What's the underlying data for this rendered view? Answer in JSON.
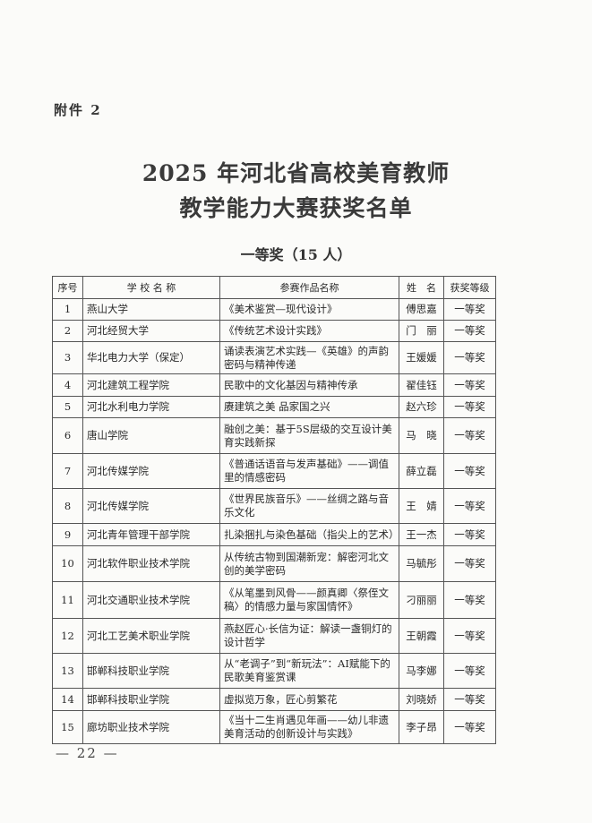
{
  "attachment_label": "附件 2",
  "title_line1": "2025 年河北省高校美育教师",
  "title_line2": "教学能力大赛获奖名单",
  "section_heading": "一等奖（15 人）",
  "table": {
    "headers": [
      "序号",
      "学 校 名 称",
      "参赛作品名称",
      "姓　名",
      "获奖等级"
    ],
    "rows": [
      [
        "1",
        "燕山大学",
        "《美术鉴赏—现代设计》",
        "傅思嘉",
        "一等奖"
      ],
      [
        "2",
        "河北经贸大学",
        "《传统艺术设计实践》",
        "门　丽",
        "一等奖"
      ],
      [
        "3",
        "华北电力大学（保定）",
        "诵读表演艺术实践—《英雄》的声韵密码与精神传递",
        "王媛媛",
        "一等奖"
      ],
      [
        "4",
        "河北建筑工程学院",
        "民歌中的文化基因与精神传承",
        "翟佳钰",
        "一等奖"
      ],
      [
        "5",
        "河北水利电力学院",
        "赓建筑之美 品家国之兴",
        "赵六珍",
        "一等奖"
      ],
      [
        "6",
        "唐山学院",
        "融创之美：基于5S层级的交互设计美育实践新探",
        "马　晓",
        "一等奖"
      ],
      [
        "7",
        "河北传媒学院",
        "《普通话语音与发声基础》——调值里的情感密码",
        "薛立磊",
        "一等奖"
      ],
      [
        "8",
        "河北传媒学院",
        "《世界民族音乐》——丝绸之路与音乐文化",
        "王　婧",
        "一等奖"
      ],
      [
        "9",
        "河北青年管理干部学院",
        "扎染捆扎与染色基础（指尖上的艺术）",
        "王一杰",
        "一等奖"
      ],
      [
        "10",
        "河北软件职业技术学院",
        "从传统古物到国潮新宠：解密河北文创的美学密码",
        "马毓彤",
        "一等奖"
      ],
      [
        "11",
        "河北交通职业技术学院",
        "《从笔墨到风骨——颜真卿〈祭侄文稿〉的情感力量与家国情怀》",
        "刁丽丽",
        "一等奖"
      ],
      [
        "12",
        "河北工艺美术职业学院",
        "燕赵匠心·长信为证：解读一盏铜灯的设计哲学",
        "王朝霞",
        "一等奖"
      ],
      [
        "13",
        "邯郸科技职业学院",
        "从“老调子”到“新玩法”：AI赋能下的民歌美育鉴赏课",
        "马李娜",
        "一等奖"
      ],
      [
        "14",
        "邯郸科技职业学院",
        "虚拟览万象，匠心剪繁花",
        "刘晓娇",
        "一等奖"
      ],
      [
        "15",
        "廊坊职业技术学院",
        "《当十二生肖遇见年画——幼儿非遗美育活动的创新设计与实践》",
        "李子昂",
        "一等奖"
      ]
    ]
  },
  "page_number": "— 22 —"
}
